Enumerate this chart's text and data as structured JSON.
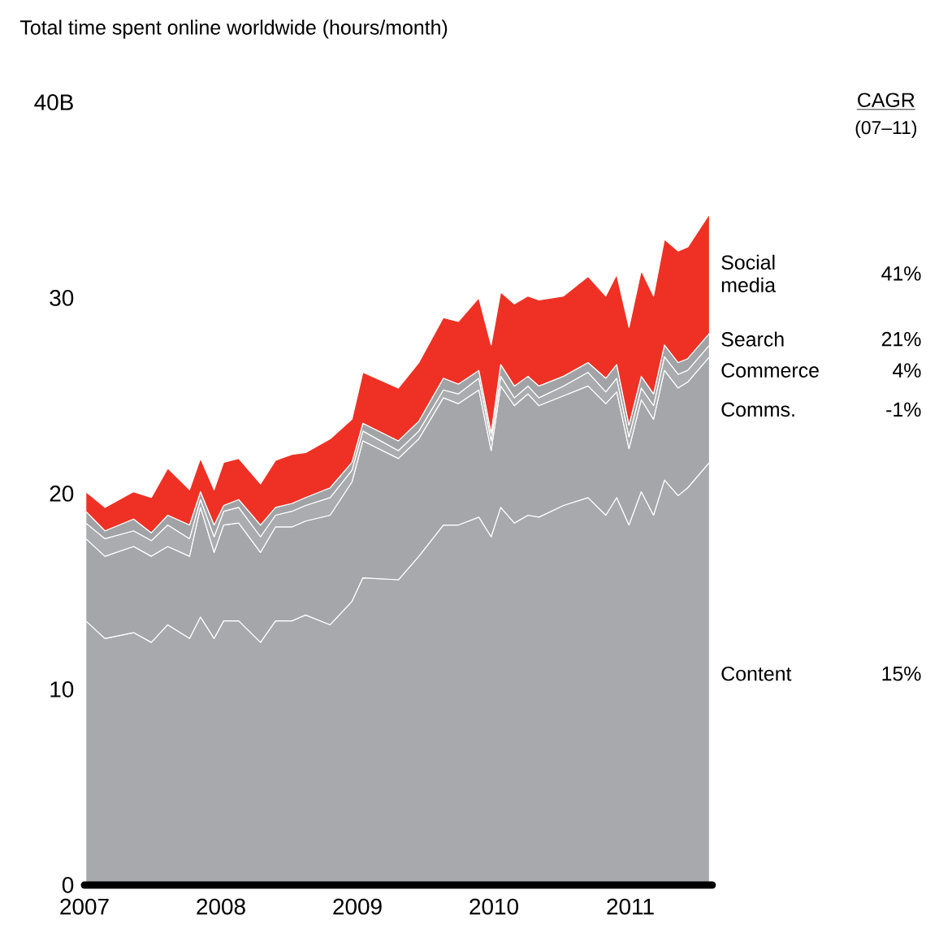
{
  "chart_data": {
    "type": "area",
    "stacked": true,
    "title": "Total time spent online worldwide (hours/month)",
    "legend_title": "CAGR",
    "annotations": [
      "(07–11)",
      "15%",
      "-1%",
      "4%",
      "21%",
      "41%"
    ],
    "x": [
      2007.01,
      2007.15,
      2007.36,
      2007.49,
      2007.61,
      2007.77,
      2007.85,
      2007.95,
      2008.02,
      2008.13,
      2008.29,
      2008.4,
      2008.52,
      2008.62,
      2008.8,
      2008.96,
      2009.04,
      2009.3,
      2009.45,
      2009.63,
      2009.74,
      2009.89,
      2009.98,
      2010.05,
      2010.15,
      2010.25,
      2010.33,
      2010.51,
      2010.69,
      2010.82,
      2010.9,
      2010.99,
      2011.08,
      2011.17,
      2011.25,
      2011.35,
      2011.42,
      2011.58
    ],
    "series": [
      {
        "name": "Content",
        "color": "#a7a9ac",
        "values": [
          13.5,
          12.6,
          12.9,
          12.4,
          13.3,
          12.6,
          13.7,
          12.6,
          13.5,
          13.5,
          12.4,
          13.5,
          13.5,
          13.8,
          13.3,
          14.5,
          15.7,
          15.6,
          16.8,
          18.4,
          18.4,
          18.8,
          17.8,
          19.3,
          18.5,
          18.9,
          18.8,
          19.4,
          19.8,
          18.9,
          19.8,
          18.4,
          20.1,
          18.9,
          20.7,
          19.9,
          20.3,
          21.6
        ]
      },
      {
        "name": "Comms.",
        "color": "#a4a6a9",
        "values": [
          4.2,
          4.2,
          4.4,
          4.4,
          4.0,
          4.2,
          5.6,
          4.4,
          4.9,
          5.0,
          4.6,
          4.8,
          4.8,
          4.8,
          5.6,
          6.1,
          7.0,
          6.2,
          6.0,
          6.5,
          6.2,
          6.5,
          4.4,
          6.2,
          6.0,
          6.2,
          5.7,
          5.6,
          5.7,
          5.7,
          5.4,
          3.9,
          4.7,
          4.9,
          5.6,
          5.5,
          5.4,
          5.4
        ]
      },
      {
        "name": "Commerce",
        "color": "#aaacaf",
        "values": [
          0.8,
          0.9,
          0.8,
          0.8,
          1.1,
          0.9,
          0.4,
          0.8,
          0.7,
          0.8,
          0.8,
          0.6,
          0.8,
          0.8,
          0.9,
          0.6,
          0.5,
          0.4,
          0.4,
          0.4,
          0.5,
          0.6,
          0.5,
          0.5,
          0.4,
          0.4,
          0.4,
          0.5,
          0.7,
          0.6,
          0.7,
          0.6,
          0.6,
          0.7,
          0.7,
          0.7,
          0.6,
          0.6
        ]
      },
      {
        "name": "Search",
        "color": "#a1a3a6",
        "values": [
          0.6,
          0.4,
          0.6,
          0.4,
          0.5,
          0.7,
          0.4,
          0.6,
          0.3,
          0.4,
          0.6,
          0.4,
          0.4,
          0.4,
          0.5,
          0.4,
          0.4,
          0.5,
          0.5,
          0.6,
          0.5,
          0.4,
          0.4,
          0.6,
          0.6,
          0.5,
          0.6,
          0.5,
          0.5,
          0.7,
          0.7,
          0.6,
          0.6,
          0.6,
          0.6,
          0.6,
          0.6,
          0.6
        ]
      },
      {
        "name": "Social media",
        "color": "#ee3124",
        "values": [
          1.0,
          1.2,
          1.4,
          1.8,
          2.4,
          1.8,
          1.7,
          1.8,
          2.2,
          2.1,
          2.1,
          2.4,
          2.5,
          2.3,
          2.5,
          2.2,
          2.6,
          2.7,
          3.0,
          3.1,
          3.2,
          3.7,
          4.5,
          3.7,
          4.2,
          4.1,
          4.4,
          4.1,
          4.4,
          4.2,
          4.6,
          5.0,
          5.4,
          5.0,
          5.4,
          5.7,
          5.7,
          6.1
        ]
      }
    ],
    "xlim": [
      2007,
      2011.6
    ],
    "ylim": [
      0,
      40
    ],
    "xticks": [
      2007,
      2008,
      2009,
      2010,
      2011
    ],
    "yticks": [
      0,
      10,
      20,
      30,
      {
        "value": 40,
        "label": "40B"
      }
    ]
  }
}
